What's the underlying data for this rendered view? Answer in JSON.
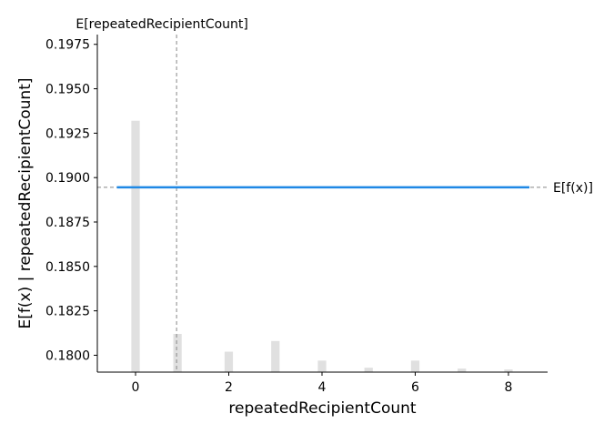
{
  "chart_data": {
    "type": "line",
    "title": "",
    "xlabel": "repeatedRecipientCount",
    "ylabel": "E[f(x) | repeatedRecipientCount]",
    "xlim": [
      -0.82,
      8.84
    ],
    "ylim": [
      0.17905,
      0.19805
    ],
    "x_ticks": [
      0,
      2,
      4,
      6,
      8
    ],
    "x_tick_labels": [
      "0",
      "2",
      "4",
      "6",
      "8"
    ],
    "y_ticks": [
      0.18,
      0.1825,
      0.185,
      0.1875,
      0.19,
      0.1925,
      0.195,
      0.1975
    ],
    "y_tick_labels": [
      "0.1800",
      "0.1825",
      "0.1850",
      "0.1875",
      "0.1900",
      "0.1925",
      "0.1950",
      "0.1975"
    ],
    "grid": false,
    "series": [
      {
        "x": [
          -0.4,
          8.45
        ],
        "y": [
          0.18945,
          0.18945
        ],
        "color": "#1e88e5"
      }
    ],
    "histogram": {
      "color": "#e0e0e0",
      "bar_width_data": 0.18,
      "bars": [
        {
          "x": 0,
          "top": 0.1932
        },
        {
          "x": 0.9,
          "top": 0.1812
        },
        {
          "x": 2,
          "top": 0.1802
        },
        {
          "x": 3,
          "top": 0.1808
        },
        {
          "x": 4,
          "top": 0.1797
        },
        {
          "x": 5,
          "top": 0.1793
        },
        {
          "x": 6,
          "top": 0.1797
        },
        {
          "x": 7,
          "top": 0.17925
        },
        {
          "x": 8,
          "top": 0.1792
        }
      ]
    },
    "expected_x": {
      "value": 0.88,
      "label": "E[repeatedRecipientCount]"
    },
    "expected_fx": {
      "value": 0.18945,
      "label": "E[f(x)]"
    }
  }
}
